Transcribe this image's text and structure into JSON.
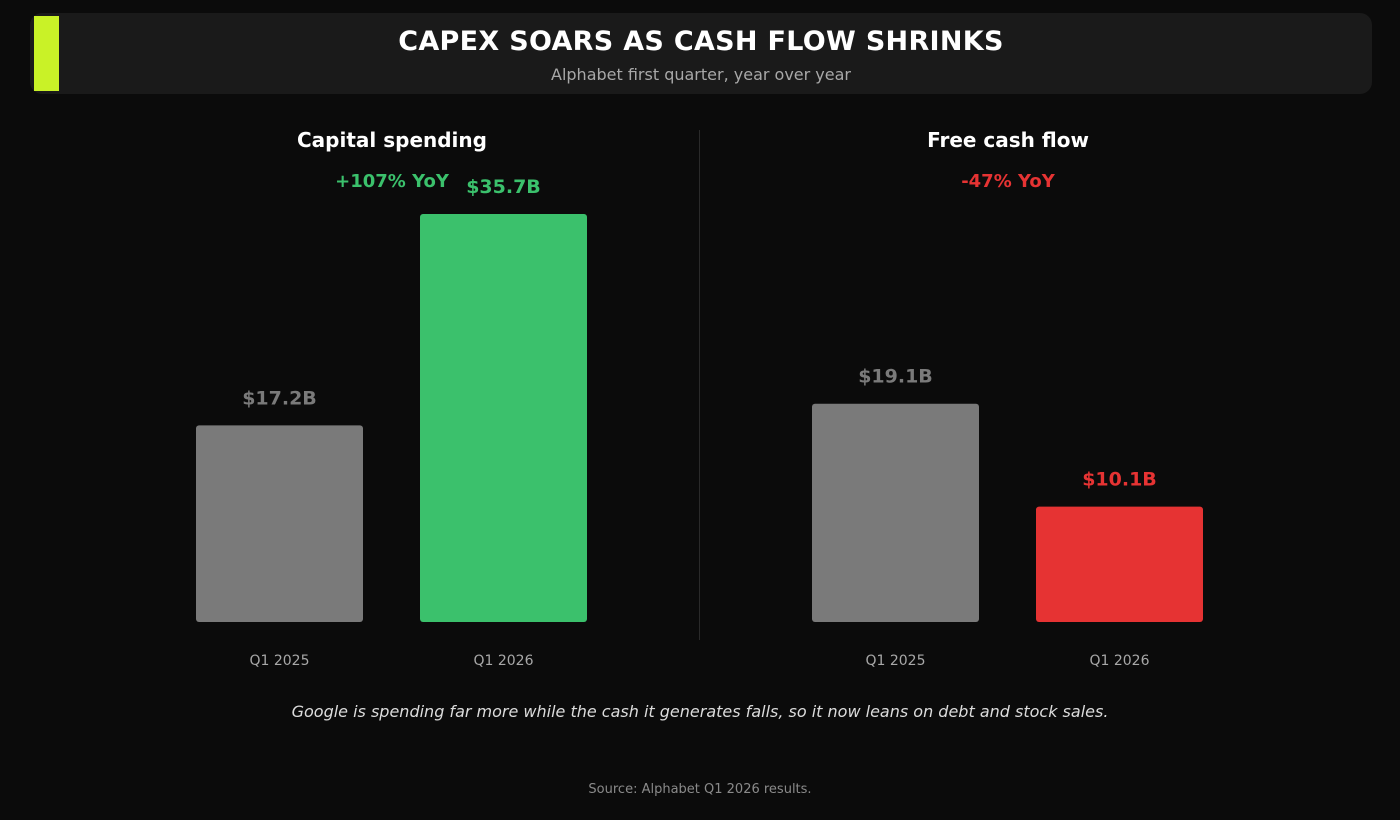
{
  "header": {
    "title": "CAPEX SOARS AS CASH FLOW SHRINKS",
    "subtitle": "Alphabet first quarter, year over year"
  },
  "colors": {
    "accent": "#c9f227",
    "prior": "#7a7a7a",
    "up": "#3bc16c",
    "down": "#e63333"
  },
  "chart_data": [
    {
      "type": "bar",
      "title": "Capital spending",
      "change_label": "+107% YoY",
      "categories": [
        "Q1 2025",
        "Q1 2026"
      ],
      "values": [
        17.2,
        35.7
      ],
      "value_labels": [
        "$17.2B",
        "$35.7B"
      ],
      "unit": "$B",
      "ylim": [
        0,
        35.7
      ]
    },
    {
      "type": "bar",
      "title": "Free cash flow",
      "change_label": "-47% YoY",
      "categories": [
        "Q1 2025",
        "Q1 2026"
      ],
      "values": [
        19.1,
        10.1
      ],
      "value_labels": [
        "$19.1B",
        "$10.1B"
      ],
      "unit": "$B",
      "ylim": [
        0,
        35.7
      ]
    }
  ],
  "footnote": "Google is spending far more while the cash it generates falls, so it now leans on debt and stock sales.",
  "source": "Source: Alphabet Q1 2026 results."
}
